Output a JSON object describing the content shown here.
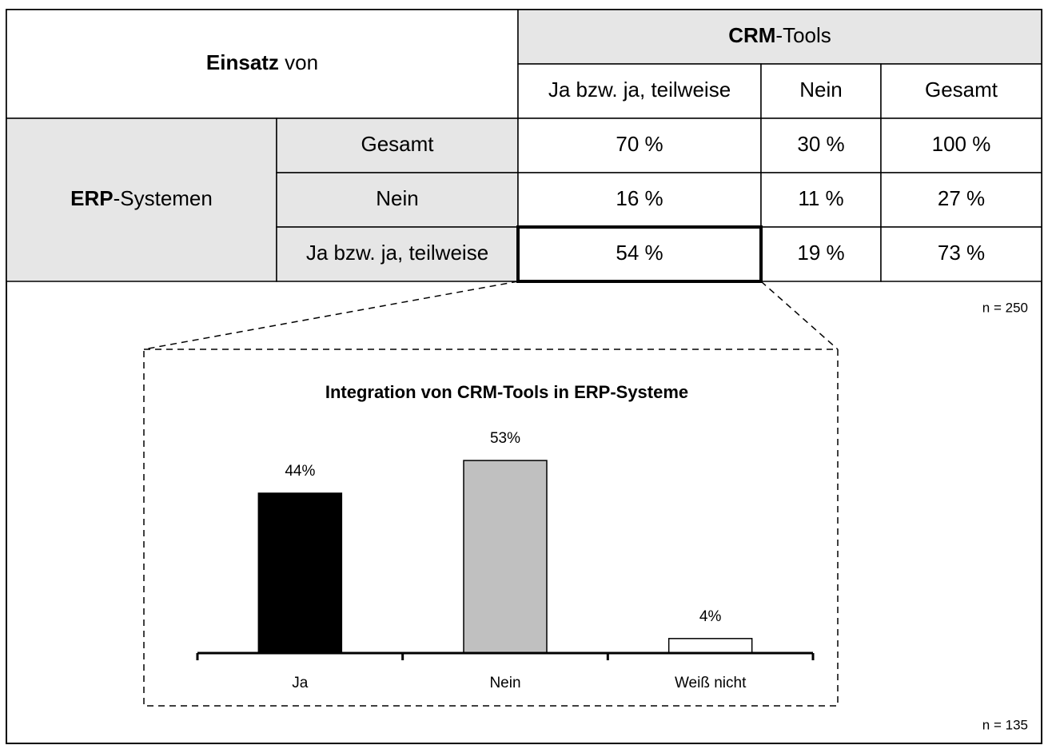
{
  "table": {
    "corner": [
      "Einsatz",
      " von"
    ],
    "column_group": [
      "CRM",
      "-Tools"
    ],
    "columns": [
      "Ja bzw. ja, teilweise",
      "Nein",
      "Gesamt"
    ],
    "row_group": [
      "ERP",
      "-Systemen"
    ],
    "rows": [
      {
        "label": "Gesamt",
        "cells": [
          "70 %",
          "30 %",
          "100 %"
        ]
      },
      {
        "label": "Nein",
        "cells": [
          "16 %",
          "11 %",
          "27 %"
        ]
      },
      {
        "label": "Ja bzw. ja, teilweise",
        "cells": [
          "54 %",
          "19 %",
          "73 %"
        ]
      }
    ],
    "n": "n = 250"
  },
  "chart_data": {
    "type": "bar",
    "title": "Integration von CRM-Tools in ERP-Systeme",
    "categories": [
      "Ja",
      "Nein",
      "Weiß nicht"
    ],
    "values": [
      44,
      53,
      4
    ],
    "value_labels": [
      "44%",
      "53%",
      "4%"
    ],
    "colors": [
      "#000000",
      "#c0c0c0",
      "#ffffff"
    ],
    "note": "n = 135"
  }
}
